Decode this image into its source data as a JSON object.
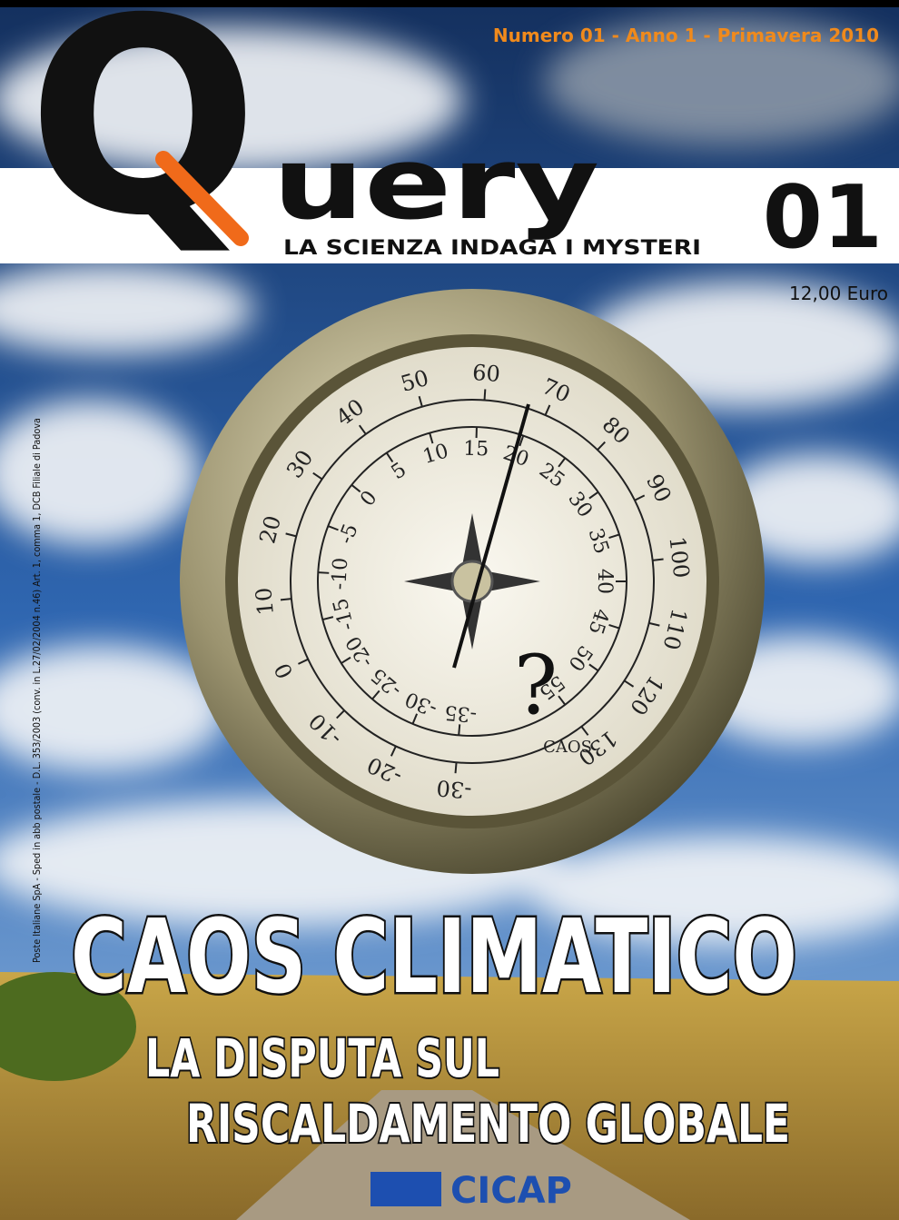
{
  "header": {
    "issue_line": "Numero 01 - Anno 1 - Primavera 2010",
    "logo_q": "Q",
    "logo_rest": "uery",
    "tagline": "LA SCIENZA INDAGA I MYSTERI",
    "number": "01",
    "price": "12,00 Euro"
  },
  "side_note": "Poste Italiane SpA - Sped in abb postale - D.L. 353/2003 (conv. in L.27/02/2004 n.46) Art. 1, comma 1, DCB Filiale di Padova",
  "dial": {
    "outer_scale": [
      -30,
      -20,
      -10,
      0,
      10,
      20,
      30,
      40,
      50,
      60,
      70,
      80,
      90,
      100,
      110,
      120,
      130
    ],
    "inner_scale": [
      -35,
      -30,
      -25,
      -20,
      -15,
      -10,
      -5,
      0,
      5,
      10,
      15,
      20,
      25,
      30,
      35,
      40,
      45,
      50,
      55
    ],
    "label": "CAOS",
    "mark": "?"
  },
  "headline": {
    "title": "CAOS CLIMATICO",
    "subtitle_lines": [
      "LA DISPUTA SUL",
      "RISCALDAMENTO GLOBALE"
    ]
  },
  "publisher": "CICAP"
}
